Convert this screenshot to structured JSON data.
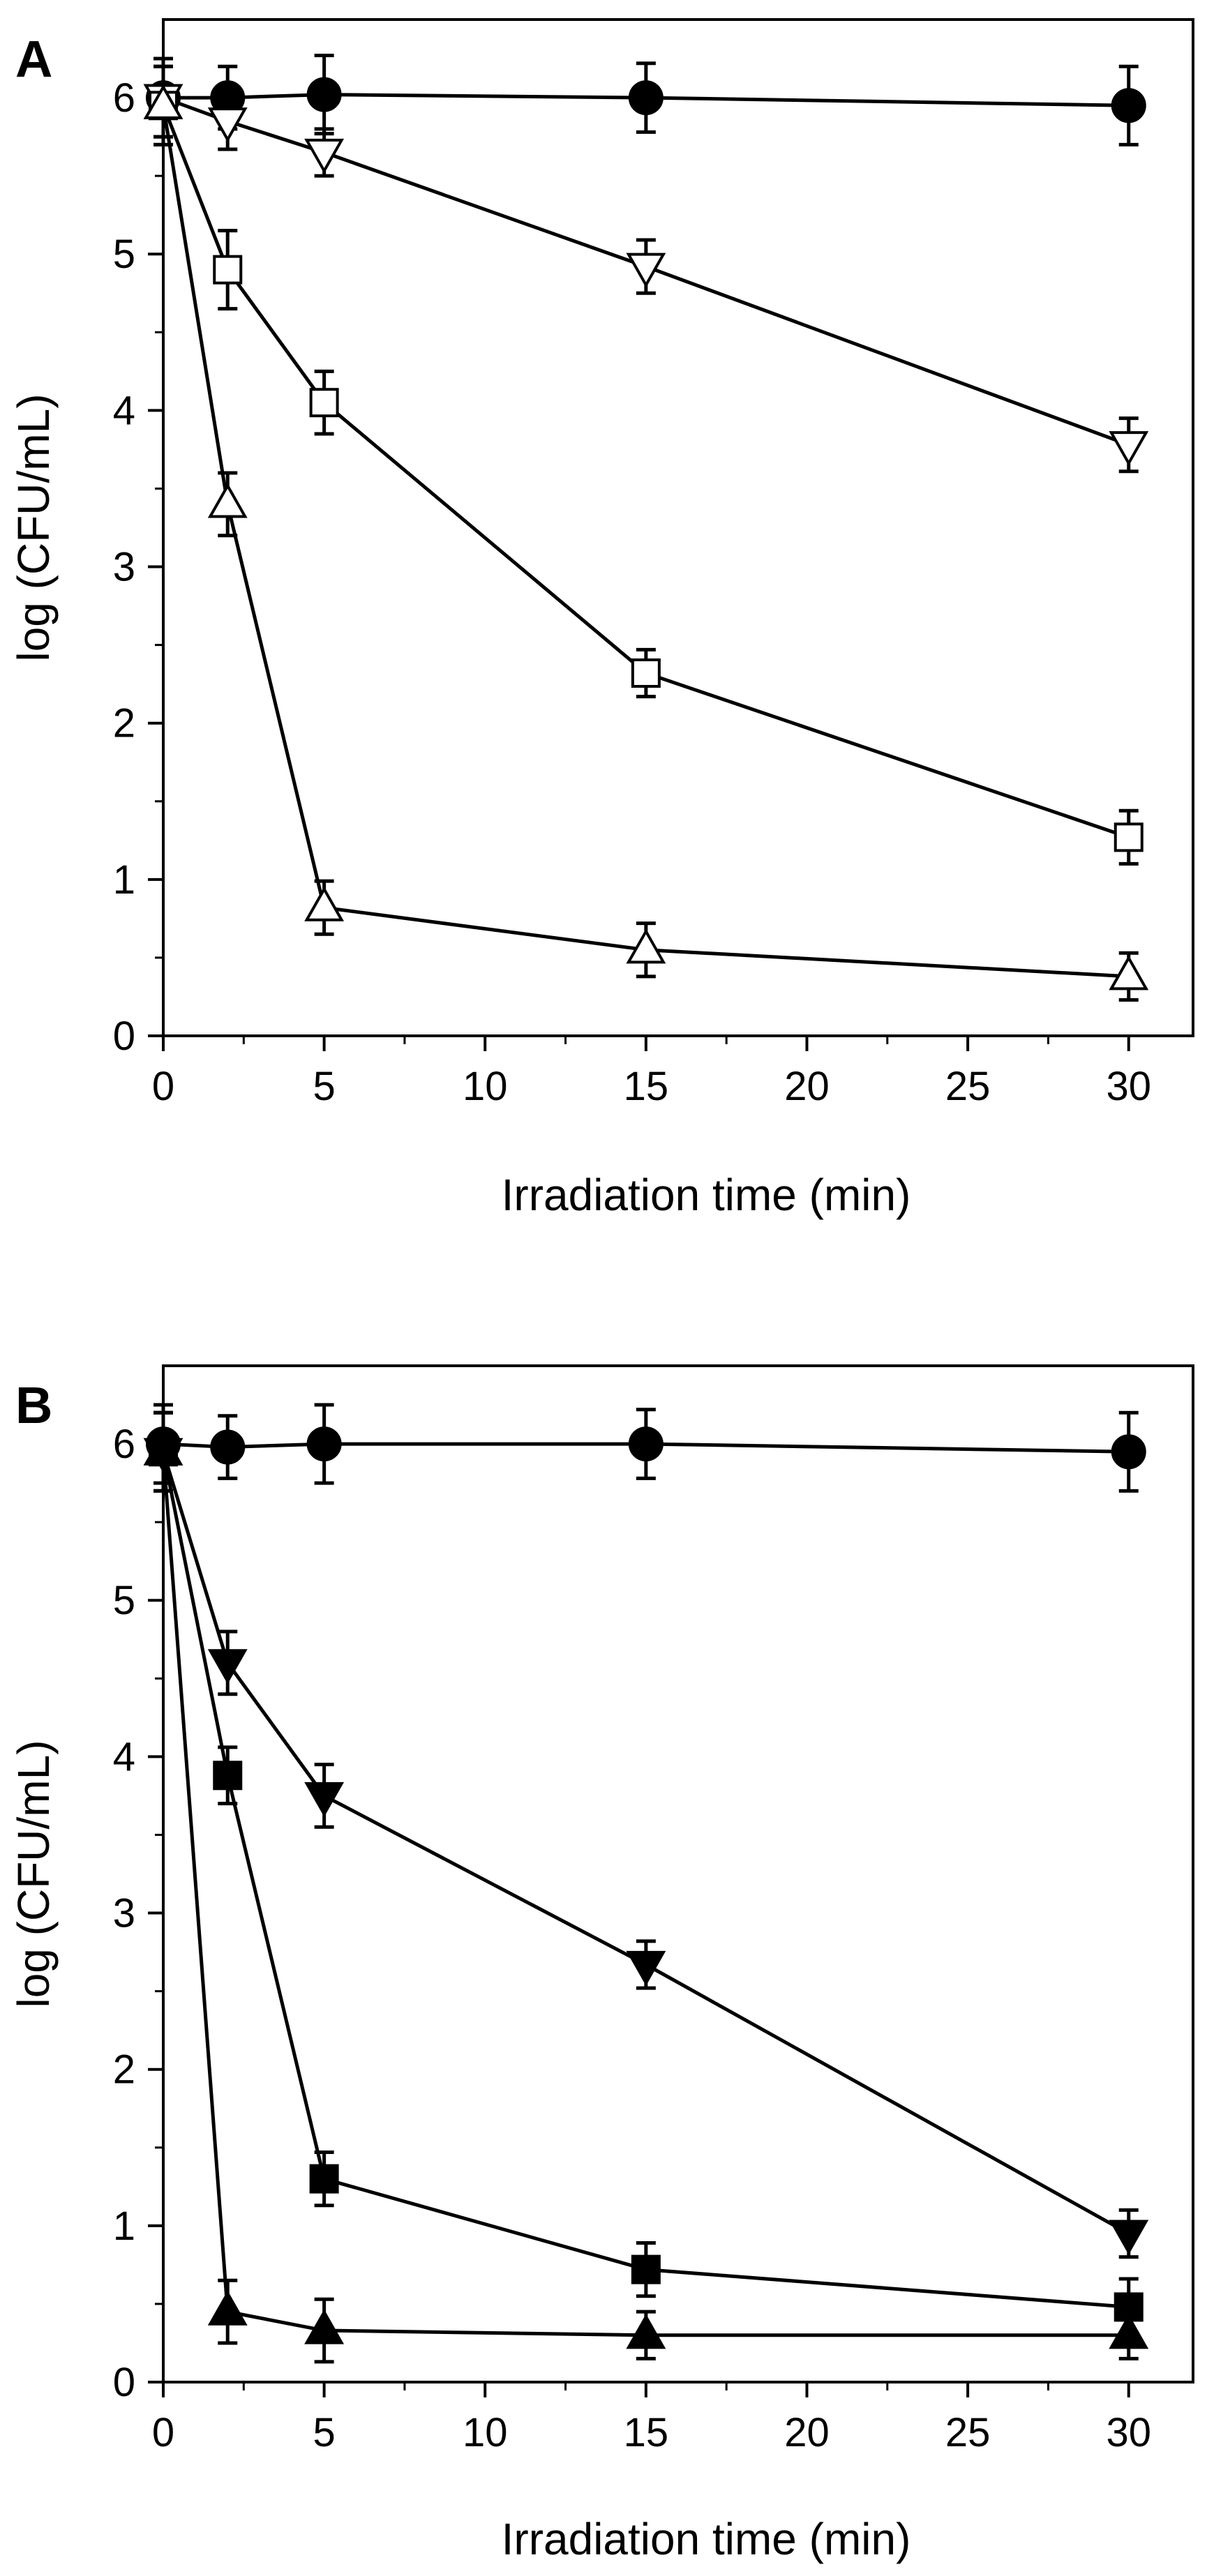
{
  "chart_data": [
    {
      "panel_label": "A",
      "type": "line",
      "xlabel": "Irradiation time (min)",
      "ylabel": "log (CFU/mL)",
      "xlim": [
        0,
        32
      ],
      "ylim": [
        0,
        6.5
      ],
      "xticks": [
        0,
        5,
        10,
        15,
        20,
        25,
        30
      ],
      "yticks": [
        0,
        1,
        2,
        3,
        4,
        5,
        6
      ],
      "x": [
        0,
        2,
        5,
        15,
        30
      ],
      "series": [
        {
          "marker": "circle",
          "filled": true,
          "values": [
            6.0,
            6.0,
            6.02,
            6.0,
            5.95
          ],
          "errors": [
            0.25,
            0.2,
            0.25,
            0.22,
            0.25
          ]
        },
        {
          "marker": "triangle-down",
          "filled": false,
          "values": [
            6.0,
            5.85,
            5.65,
            4.92,
            3.78
          ],
          "errors": [
            0.25,
            0.18,
            0.15,
            0.17,
            0.17
          ]
        },
        {
          "marker": "square",
          "filled": false,
          "values": [
            5.95,
            4.9,
            4.05,
            2.32,
            1.27
          ],
          "errors": [
            0.25,
            0.25,
            0.2,
            0.15,
            0.17
          ]
        },
        {
          "marker": "triangle-up",
          "filled": false,
          "values": [
            5.95,
            3.4,
            0.82,
            0.55,
            0.38
          ],
          "errors": [
            0.25,
            0.2,
            0.17,
            0.17,
            0.15
          ]
        }
      ]
    },
    {
      "panel_label": "B",
      "type": "line",
      "xlabel": "Irradiation time (min)",
      "ylabel": "log (CFU/mL)",
      "xlim": [
        0,
        32
      ],
      "ylim": [
        0,
        6.5
      ],
      "xticks": [
        0,
        5,
        10,
        15,
        20,
        25,
        30
      ],
      "yticks": [
        0,
        1,
        2,
        3,
        4,
        5,
        6
      ],
      "x": [
        0,
        2,
        5,
        15,
        30
      ],
      "series": [
        {
          "marker": "circle",
          "filled": true,
          "values": [
            6.0,
            5.98,
            6.0,
            6.0,
            5.95
          ],
          "errors": [
            0.25,
            0.2,
            0.25,
            0.22,
            0.25
          ]
        },
        {
          "marker": "triangle-down",
          "filled": true,
          "values": [
            5.95,
            4.6,
            3.75,
            2.67,
            0.95
          ],
          "errors": [
            0.25,
            0.2,
            0.2,
            0.15,
            0.15
          ]
        },
        {
          "marker": "square",
          "filled": true,
          "values": [
            5.95,
            3.88,
            1.3,
            0.72,
            0.48
          ],
          "errors": [
            0.25,
            0.18,
            0.17,
            0.17,
            0.18
          ]
        },
        {
          "marker": "triangle-up",
          "filled": true,
          "values": [
            5.95,
            0.45,
            0.33,
            0.3,
            0.3
          ],
          "errors": [
            0.25,
            0.2,
            0.2,
            0.15,
            0.15
          ]
        }
      ]
    }
  ]
}
